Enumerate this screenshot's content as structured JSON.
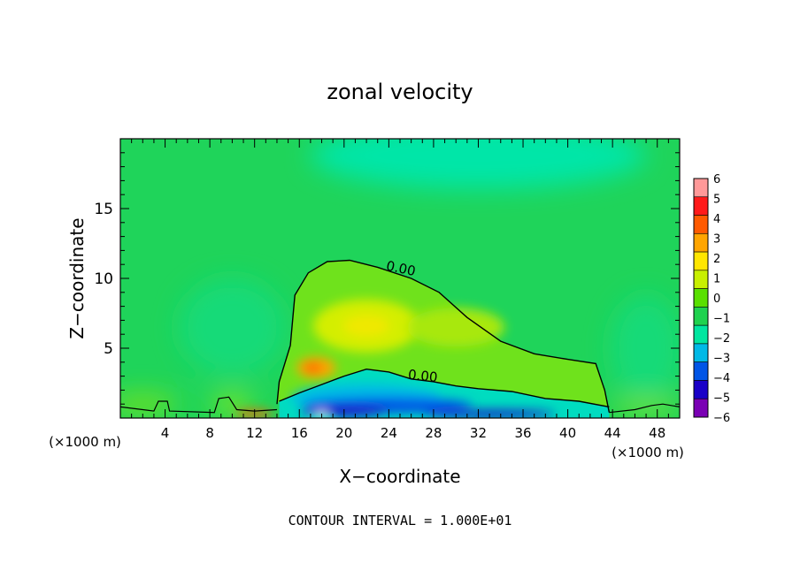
{
  "chart_data": {
    "type": "heatmap",
    "title": "zonal velocity",
    "xlabel": "X−coordinate",
    "ylabel": "Z−coordinate",
    "x_unit_left": "(×1000 m)",
    "x_unit_right": "(×1000 m)",
    "xlim": [
      0,
      50
    ],
    "ylim": [
      0,
      20
    ],
    "x_ticks": [
      4,
      8,
      12,
      16,
      20,
      24,
      28,
      32,
      36,
      40,
      44,
      48
    ],
    "y_ticks": [
      5,
      10,
      15
    ],
    "footer": "CONTOUR INTERVAL = 1.000E+01",
    "contour_labels": [
      {
        "text": "0.00",
        "x": 25,
        "z": 10.4
      },
      {
        "text": "0.00",
        "x": 27,
        "z": 2.7
      }
    ],
    "colorbar": {
      "levels": [
        6,
        5,
        4,
        3,
        2,
        1,
        0,
        -1,
        -2,
        -3,
        -4,
        -5,
        -6
      ],
      "labels": [
        "6",
        "5",
        "4",
        "3",
        "2",
        "1",
        "0",
        "−1",
        "−2",
        "−3",
        "−4",
        "−5",
        "−6"
      ],
      "colors": [
        "#ff9999",
        "#ff1a1a",
        "#ff5a00",
        "#ffa500",
        "#ffe600",
        "#c8f000",
        "#59e000",
        "#1fd24f",
        "#00e6a0",
        "#00b9e6",
        "#0055e6",
        "#1a00c8",
        "#7a00b4"
      ]
    },
    "contour_zero_upper": [
      [
        14,
        1
      ],
      [
        14.2,
        2.6
      ],
      [
        15.2,
        5.2
      ],
      [
        15.6,
        8.8
      ],
      [
        16.8,
        10.4
      ],
      [
        18.5,
        11.2
      ],
      [
        20.5,
        11.3
      ],
      [
        23,
        10.8
      ],
      [
        26,
        10
      ],
      [
        28.5,
        9
      ],
      [
        31,
        7.2
      ],
      [
        34,
        5.5
      ],
      [
        37,
        4.6
      ],
      [
        40,
        4.2
      ],
      [
        42.5,
        3.9
      ],
      [
        43.3,
        2
      ],
      [
        43.7,
        0.4
      ]
    ],
    "contour_zero_lower": [
      [
        14.2,
        1.2
      ],
      [
        16,
        1.8
      ],
      [
        18,
        2.4
      ],
      [
        20,
        3
      ],
      [
        22,
        3.5
      ],
      [
        24,
        3.3
      ],
      [
        26,
        2.8
      ],
      [
        28,
        2.6
      ],
      [
        30,
        2.3
      ],
      [
        32,
        2.1
      ],
      [
        35,
        1.9
      ],
      [
        38,
        1.4
      ],
      [
        41,
        1.2
      ],
      [
        43.7,
        0.8
      ]
    ]
  }
}
